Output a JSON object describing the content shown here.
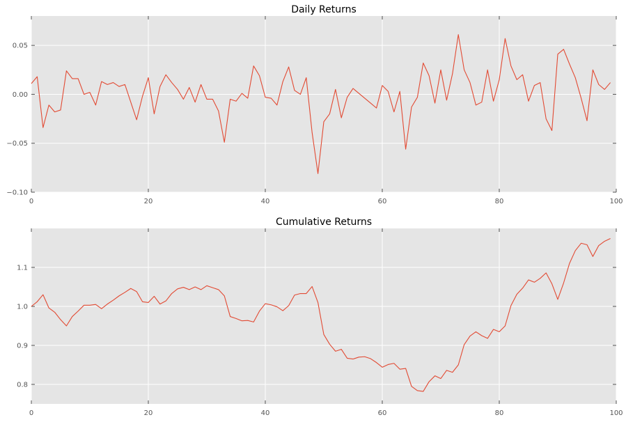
{
  "colors": {
    "series": "#e24a33",
    "panel": "#e5e5e5",
    "grid": "#ffffff",
    "tick": "#555555"
  },
  "chart_data": [
    {
      "type": "line",
      "title": "Daily Returns",
      "xlabel": "",
      "ylabel": "",
      "xlim": [
        0,
        100
      ],
      "ylim": [
        -0.1,
        0.08
      ],
      "xticks": [
        0,
        20,
        40,
        60,
        80,
        100
      ],
      "xtick_labels": [
        "0",
        "20",
        "40",
        "60",
        "80",
        "100"
      ],
      "yticks": [
        -0.1,
        -0.05,
        0.0,
        0.05
      ],
      "ytick_labels": [
        "−0.10",
        "−0.05",
        "0.00",
        "0.05"
      ],
      "grid": true,
      "series": [
        {
          "values": [
            0.011,
            0.018,
            -0.034,
            -0.011,
            -0.018,
            -0.016,
            0.024,
            0.016,
            0.016,
            0.0,
            0.002,
            -0.011,
            0.013,
            0.01,
            0.012,
            0.008,
            0.01,
            -0.008,
            -0.026,
            -0.002,
            0.017,
            -0.02,
            0.008,
            0.02,
            0.012,
            0.005,
            -0.005,
            0.007,
            -0.008,
            0.01,
            -0.005,
            -0.005,
            -0.017,
            -0.049,
            -0.005,
            -0.007,
            0.001,
            -0.004,
            0.029,
            0.019,
            -0.003,
            -0.004,
            -0.011,
            0.013,
            0.028,
            0.004,
            0.0,
            0.017,
            -0.039,
            -0.081,
            -0.028,
            -0.02,
            0.005,
            -0.024,
            -0.003,
            0.006,
            0.001,
            -0.004,
            -0.009,
            -0.014,
            0.009,
            0.003,
            -0.018,
            0.003,
            -0.056,
            -0.013,
            -0.003,
            0.032,
            0.019,
            -0.009,
            0.025,
            -0.006,
            0.021,
            0.061,
            0.025,
            0.012,
            -0.011,
            -0.008,
            0.025,
            -0.007,
            0.015,
            0.057,
            0.029,
            0.015,
            0.02,
            -0.007,
            0.009,
            0.012,
            -0.025,
            -0.037,
            0.041,
            0.046,
            0.031,
            0.017,
            -0.004,
            -0.027,
            0.025,
            0.01,
            0.005,
            0.012
          ]
        }
      ]
    },
    {
      "type": "line",
      "title": "Cumulative Returns",
      "xlabel": "",
      "ylabel": "",
      "xlim": [
        0,
        100
      ],
      "ylim": [
        0.75,
        1.2
      ],
      "xticks": [
        0,
        20,
        40,
        60,
        80,
        100
      ],
      "xtick_labels": [
        "0",
        "20",
        "40",
        "60",
        "80",
        "100"
      ],
      "yticks": [
        0.8,
        0.9,
        1.0,
        1.1
      ],
      "ytick_labels": [
        "0.8",
        "0.9",
        "1.0",
        "1.1"
      ],
      "grid": true,
      "series": [
        {
          "values": [
            1.0,
            1.012,
            1.03,
            0.996,
            0.985,
            0.966,
            0.95,
            0.974,
            0.988,
            1.003,
            1.003,
            1.005,
            0.994,
            1.006,
            1.016,
            1.027,
            1.036,
            1.046,
            1.038,
            1.012,
            1.01,
            1.026,
            1.006,
            1.014,
            1.033,
            1.045,
            1.049,
            1.043,
            1.05,
            1.043,
            1.053,
            1.048,
            1.043,
            1.027,
            0.974,
            0.969,
            0.963,
            0.964,
            0.96,
            0.988,
            1.007,
            1.004,
            0.999,
            0.989,
            1.002,
            1.029,
            1.033,
            1.033,
            1.051,
            1.01,
            0.928,
            0.903,
            0.885,
            0.89,
            0.867,
            0.865,
            0.87,
            0.871,
            0.866,
            0.856,
            0.844,
            0.851,
            0.854,
            0.839,
            0.841,
            0.795,
            0.784,
            0.782,
            0.807,
            0.822,
            0.815,
            0.836,
            0.831,
            0.85,
            0.902,
            0.924,
            0.935,
            0.925,
            0.918,
            0.941,
            0.935,
            0.95,
            1.002,
            1.031,
            1.047,
            1.068,
            1.062,
            1.072,
            1.086,
            1.058,
            1.018,
            1.06,
            1.11,
            1.143,
            1.162,
            1.158,
            1.128,
            1.156,
            1.167,
            1.174
          ]
        }
      ]
    }
  ]
}
